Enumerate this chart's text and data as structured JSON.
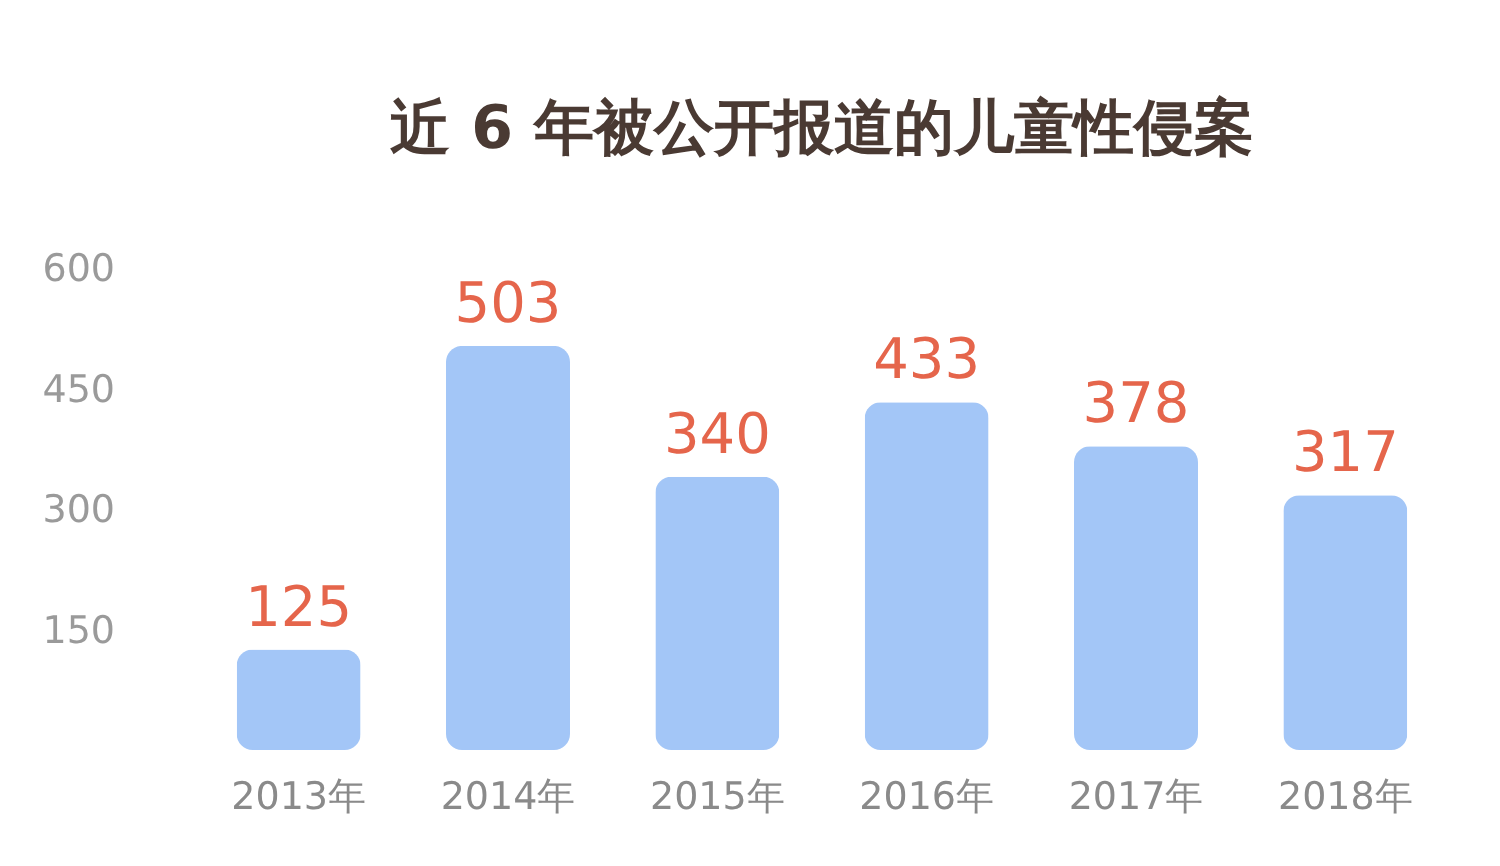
{
  "chart_data": {
    "type": "bar",
    "title": "近 6 年被公开报道的儿童性侵案",
    "categories": [
      "2013年",
      "2014年",
      "2015年",
      "2016年",
      "2017年",
      "2018年"
    ],
    "values": [
      125,
      503,
      340,
      433,
      378,
      317
    ],
    "color": "#a3c6f7",
    "data_labels": true,
    "ylim": [
      0,
      600
    ],
    "yticks": [
      150,
      300,
      450,
      600
    ],
    "grid": false
  }
}
